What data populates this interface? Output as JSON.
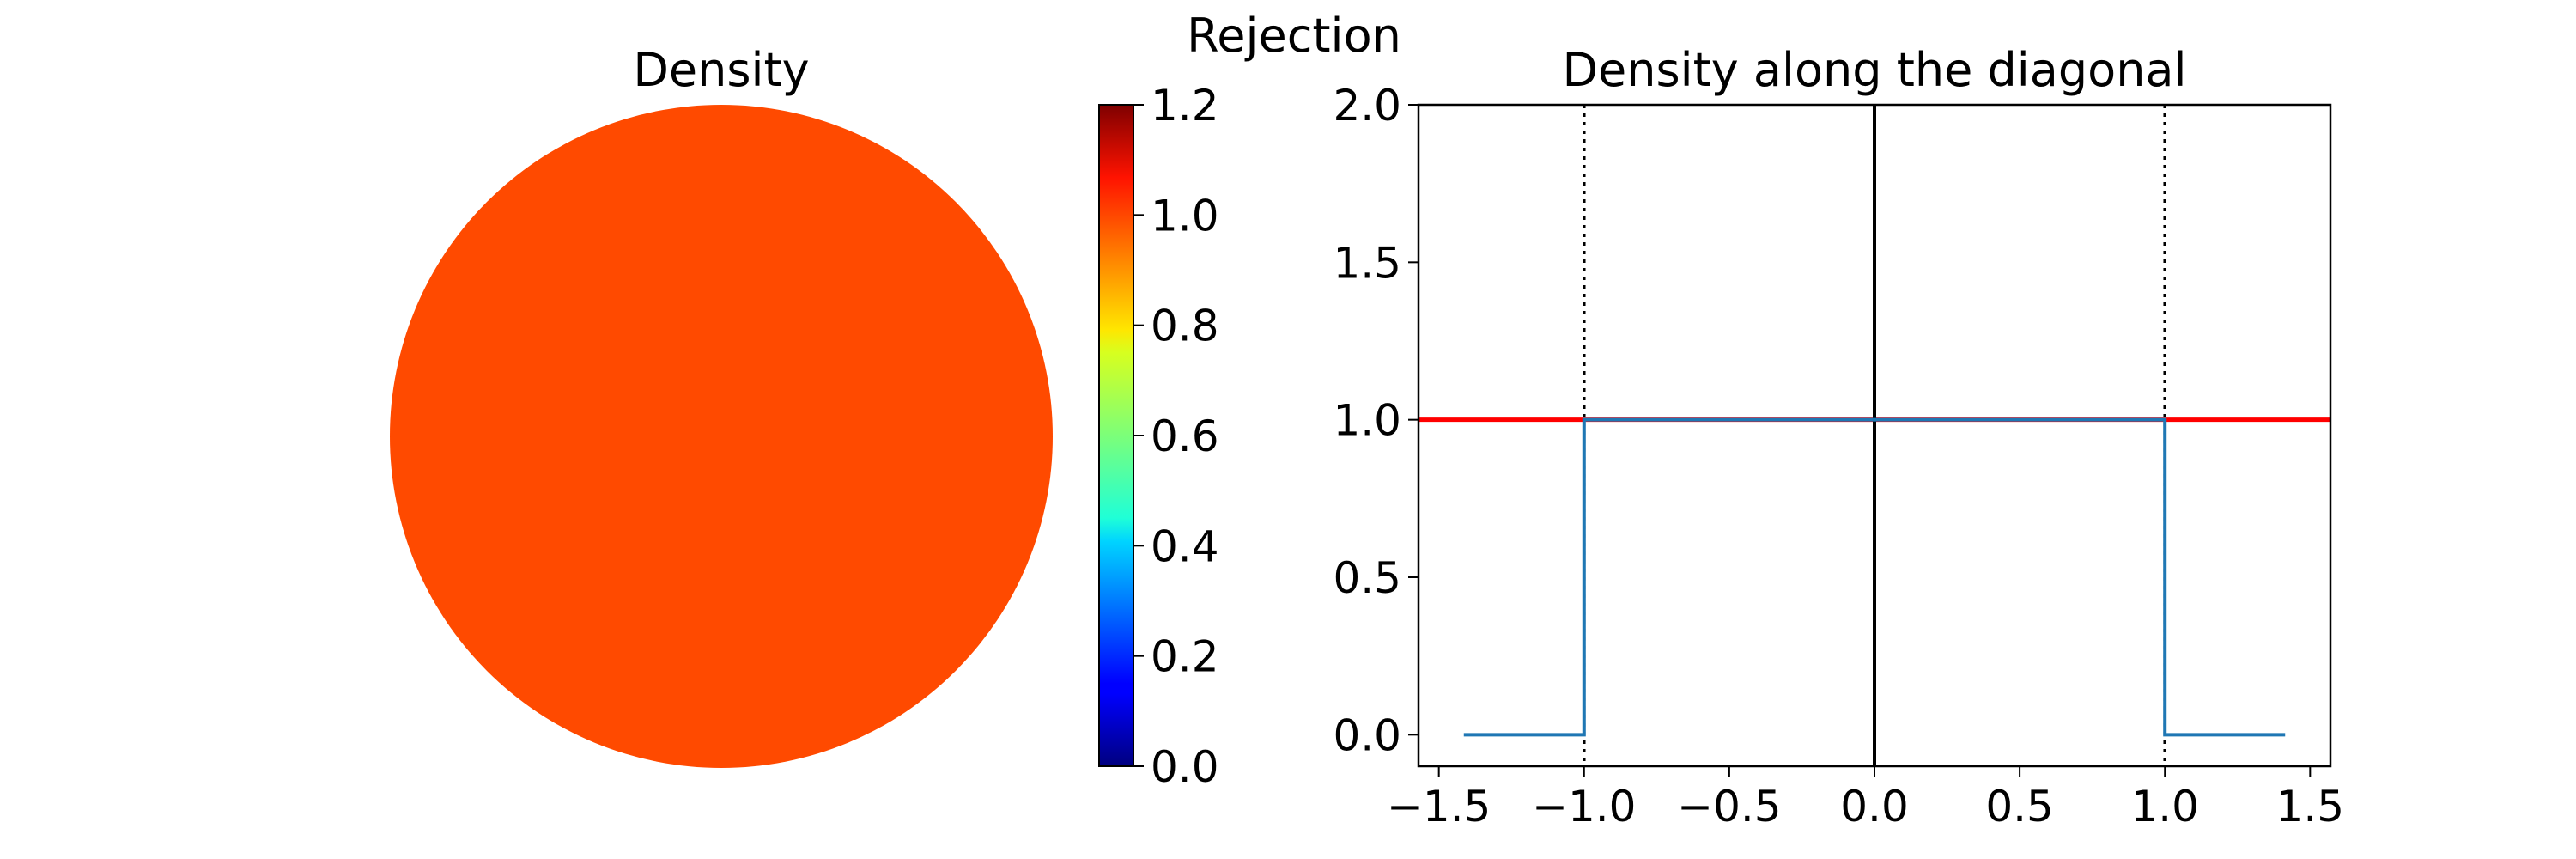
{
  "figure": {
    "suptitle": "Rejection",
    "density_map": {
      "title": "Density",
      "fill_value": 0.97,
      "shape": "disk"
    },
    "colorbar": {
      "colormap": "jet",
      "min": 0.0,
      "max": 1.2,
      "tick_labels": [
        "0.0",
        "0.2",
        "0.4",
        "0.6",
        "0.8",
        "1.0",
        "1.2"
      ]
    }
  },
  "chart_data": {
    "type": "line",
    "title": "Density along the diagonal",
    "xlabel": "",
    "ylabel": "",
    "xlim": [
      -1.57,
      1.57
    ],
    "ylim": [
      -0.1,
      2.0
    ],
    "x_ticks": [
      "−1.5",
      "−1.0",
      "−0.5",
      "0.0",
      "0.5",
      "1.0",
      "1.5"
    ],
    "y_ticks": [
      "0.0",
      "0.5",
      "1.0",
      "1.5",
      "2.0"
    ],
    "x_tick_values": [
      -1.5,
      -1.0,
      -0.5,
      0.0,
      0.5,
      1.0,
      1.5
    ],
    "y_tick_values": [
      0.0,
      0.5,
      1.0,
      1.5,
      2.0
    ],
    "series": [
      {
        "color": "#ff0000",
        "x": [
          -1.57,
          1.57
        ],
        "y": [
          1.0,
          1.0
        ]
      },
      {
        "color": "#1f77b4",
        "x": [
          -1.414,
          -1.0,
          -1.0,
          1.0,
          1.0,
          1.414
        ],
        "y": [
          0.0,
          0.0,
          1.0,
          1.0,
          0.0,
          0.0
        ]
      }
    ],
    "vlines": [
      {
        "x": -1.0,
        "style": "dotted",
        "color": "#000000"
      },
      {
        "x": 1.0,
        "style": "dotted",
        "color": "#000000"
      },
      {
        "x": 0.0,
        "style": "solid",
        "color": "#000000"
      }
    ],
    "grid": false,
    "legend": "none"
  }
}
